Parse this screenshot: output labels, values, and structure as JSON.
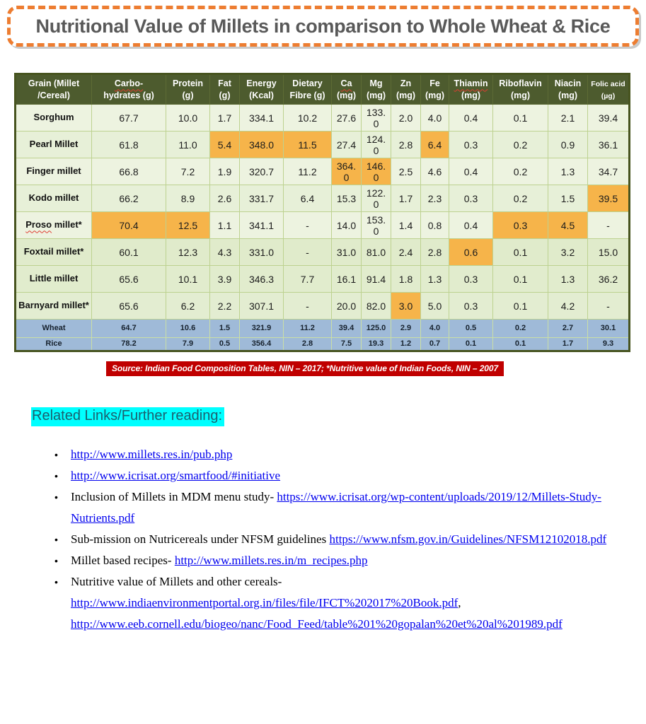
{
  "title": "Nutritional Value of Millets in comparison to Whole Wheat & Rice",
  "colors": {
    "title_border": "#ED7D31",
    "title_text": "#595959",
    "source_bg": "#C00000",
    "heading_highlight": "#00FFFF",
    "link": "#0000EE"
  },
  "table": {
    "colors": {
      "header_bg": "#4D5B2E",
      "highlight": "#F6B44A",
      "cereal_row_bg": "#9FBAD8"
    },
    "columns": [
      {
        "l1": "Grain (Millet",
        "l2": "/Cereal)",
        "sq": false
      },
      {
        "l1": "Carbo-",
        "l2": "hydrates (g)",
        "sq": true
      },
      {
        "l1": "Protein",
        "l2": "(g)",
        "sq": false
      },
      {
        "l1": "Fat",
        "l2": "(g)",
        "sq": false
      },
      {
        "l1": "Energy",
        "l2": "(Kcal)",
        "sq": false
      },
      {
        "l1": "Dietary",
        "l2": "Fibre (g)",
        "sq": false
      },
      {
        "l1": "Ca",
        "l2": "(mg)",
        "sq": true
      },
      {
        "l1": "Mg",
        "l2": "(mg)",
        "sq": false
      },
      {
        "l1": "Zn",
        "l2": "(mg)",
        "sq": false
      },
      {
        "l1": "Fe",
        "l2": "(mg)",
        "sq": false
      },
      {
        "l1": "Thiamin",
        "l2": "(mg)",
        "sq": true
      },
      {
        "l1": "Riboflavin",
        "l2": "(mg)",
        "sq": false
      },
      {
        "l1": "Niacin",
        "l2": "(mg)",
        "sq": false
      },
      {
        "l1": "Folic acid",
        "l2": "(µg)",
        "sq": false
      }
    ],
    "rows": [
      {
        "name_sq": "",
        "name_rest": "Sorghum",
        "group": "millet",
        "bg": "#EDF3E0",
        "values": [
          "67.7",
          "10.0",
          "1.7",
          "334.1",
          "10.2",
          "27.6",
          "133.0",
          "2.0",
          "4.0",
          "0.4",
          "0.1",
          "2.1",
          "39.4"
        ],
        "hl": []
      },
      {
        "name_sq": "",
        "name_rest": "Pearl Millet",
        "group": "millet",
        "bg": "#E7F0D8",
        "values": [
          "61.8",
          "11.0",
          "5.4",
          "348.0",
          "11.5",
          "27.4",
          "124.0",
          "2.8",
          "6.4",
          "0.3",
          "0.2",
          "0.9",
          "36.1"
        ],
        "hl": [
          2,
          3,
          4,
          8
        ]
      },
      {
        "name_sq": "",
        "name_rest": "Finger millet",
        "group": "millet",
        "bg": "#EDF3E0",
        "values": [
          "66.8",
          "7.2",
          "1.9",
          "320.7",
          "11.2",
          "364.0",
          "146.0",
          "2.5",
          "4.6",
          "0.4",
          "0.2",
          "1.3",
          "34.7"
        ],
        "hl": [
          5,
          6
        ]
      },
      {
        "name_sq": "",
        "name_rest": "Kodo millet",
        "group": "millet",
        "bg": "#E7F0D8",
        "values": [
          "66.2",
          "8.9",
          "2.6",
          "331.7",
          "6.4",
          "15.3",
          "122.0",
          "1.7",
          "2.3",
          "0.3",
          "0.2",
          "1.5",
          "39.5"
        ],
        "hl": [
          12
        ]
      },
      {
        "name_sq": "Proso",
        "name_rest": " millet*",
        "group": "millet",
        "bg": "#EDF3E0",
        "values": [
          "70.4",
          "12.5",
          "1.1",
          "341.1",
          "-",
          "14.0",
          "153.0",
          "1.4",
          "0.8",
          "0.4",
          "0.3",
          "4.5",
          "-"
        ],
        "hl": [
          0,
          1,
          10,
          11
        ]
      },
      {
        "name_sq": "",
        "name_rest": "Foxtail millet*",
        "group": "millet",
        "bg": "#E0EBCB",
        "values": [
          "60.1",
          "12.3",
          "4.3",
          "331.0",
          "-",
          "31.0",
          "81.0",
          "2.4",
          "2.8",
          "0.6",
          "0.1",
          "3.2",
          "15.0"
        ],
        "hl": [
          9
        ]
      },
      {
        "name_sq": "",
        "name_rest": "Little millet",
        "group": "millet",
        "bg": "#E1ECCD",
        "values": [
          "65.6",
          "10.1",
          "3.9",
          "346.3",
          "7.7",
          "16.1",
          "91.4",
          "1.8",
          "1.3",
          "0.3",
          "0.1",
          "1.3",
          "36.2"
        ],
        "hl": []
      },
      {
        "name_sq": "",
        "name_rest": "Barnyard millet*",
        "group": "millet",
        "bg": "#E3EDD1",
        "values": [
          "65.6",
          "6.2",
          "2.2",
          "307.1",
          "-",
          "20.0",
          "82.0",
          "3.0",
          "5.0",
          "0.3",
          "0.1",
          "4.2",
          "-"
        ],
        "hl": [
          7
        ]
      },
      {
        "name_sq": "",
        "name_rest": "Wheat",
        "group": "cereal",
        "bg": "#9FBAD8",
        "values": [
          "64.7",
          "10.6",
          "1.5",
          "321.9",
          "11.2",
          "39.4",
          "125.0",
          "2.9",
          "4.0",
          "0.5",
          "0.2",
          "2.7",
          "30.1"
        ],
        "hl": []
      },
      {
        "name_sq": "",
        "name_rest": "Rice",
        "group": "cereal",
        "bg": "#9FBAD8",
        "values": [
          "78.2",
          "7.9",
          "0.5",
          "356.4",
          "2.8",
          "7.5",
          "19.3",
          "1.2",
          "0.7",
          "0.1",
          "0.1",
          "1.7",
          "9.3"
        ],
        "hl": []
      }
    ]
  },
  "source": "Source: Indian Food Composition Tables, NIN – 2017; *Nutritive value of Indian Foods, NIN – 2007",
  "related_heading": "Related Links/Further reading:",
  "links": {
    "items": [
      {
        "segments": [
          {
            "t": "link",
            "v": "http://www.millets.res.in/pub.php"
          }
        ]
      },
      {
        "segments": [
          {
            "t": "link",
            "v": "http://www.icrisat.org/smartfood/#initiative"
          }
        ]
      },
      {
        "segments": [
          {
            "t": "text",
            "v": "Inclusion of Millets in MDM menu study- "
          },
          {
            "t": "link",
            "v": "https://www.icrisat.org/wp-content/uploads/2019/12/Millets-Study-Nutrients.pdf"
          }
        ]
      },
      {
        "segments": [
          {
            "t": "text",
            "v": "Sub-mission on Nutricereals under NFSM guidelines "
          },
          {
            "t": "link",
            "v": "https://www.nfsm.gov.in/Guidelines/NFSM12102018.pdf"
          }
        ]
      },
      {
        "segments": [
          {
            "t": "text",
            "v": "Millet based recipes- "
          },
          {
            "t": "link",
            "v": "http://www.millets.res.in/m_recipes.php"
          }
        ]
      },
      {
        "segments": [
          {
            "t": "text",
            "v": "Nutritive value of Millets and other cereals-"
          },
          {
            "t": "br"
          },
          {
            "t": "link",
            "v": "http://www.indiaenvironmentportal.org.in/files/file/IFCT%202017%20Book.pdf"
          },
          {
            "t": "text",
            "v": ","
          },
          {
            "t": "br"
          },
          {
            "t": "link",
            "v": "http://www.eeb.cornell.edu/biogeo/nanc/Food_Feed/table%201%20gopalan%20et%20al%201989.pdf"
          }
        ]
      }
    ]
  }
}
